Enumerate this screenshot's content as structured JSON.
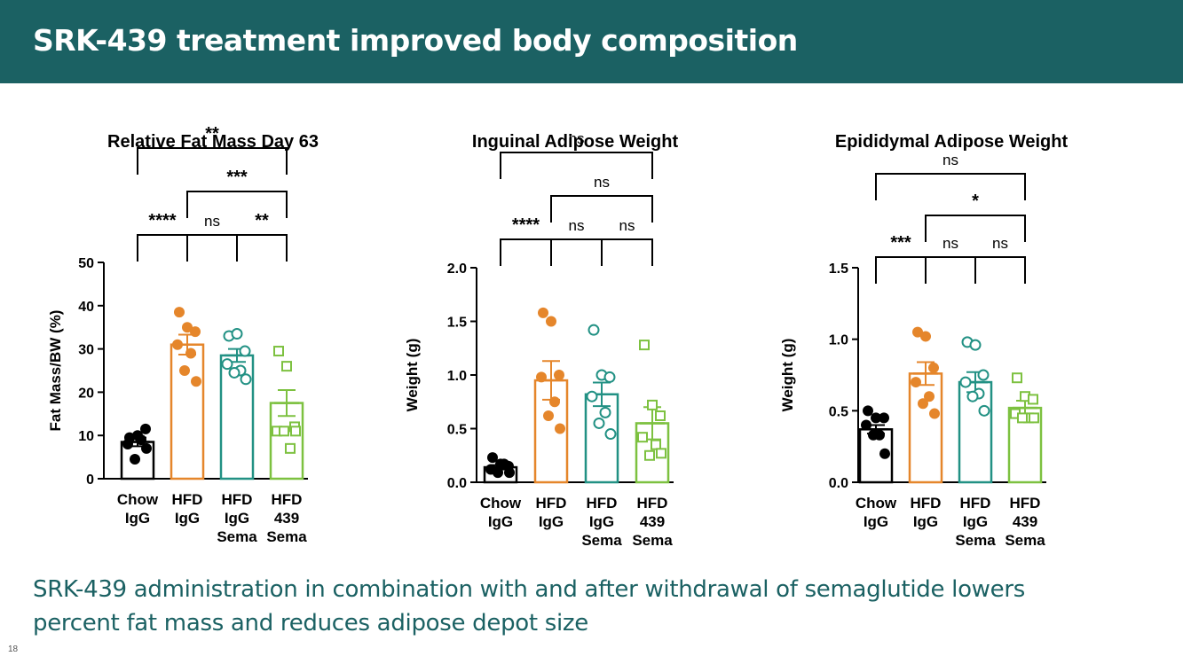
{
  "slide": {
    "title": "SRK-439 treatment improved body composition",
    "caption_line1": "SRK-439 administration in combination with and after withdrawal of semaglutide lowers",
    "caption_line2": "percent fat mass and reduces adipose depot size",
    "page_number": "18",
    "header_color": "#1b6163"
  },
  "colors": {
    "chow": "#000000",
    "hfd": "#e5862b",
    "hfd_sema": "#229184",
    "hfd_439_sema": "#7dc140"
  },
  "chart_data": [
    {
      "type": "bar",
      "title": "Relative Fat Mass Day 63",
      "ylabel": "Fat Mass/BW (%)",
      "xlabel": "",
      "ylim": [
        0,
        50
      ],
      "yticks": [
        0,
        10,
        20,
        30,
        40,
        50
      ],
      "ytick_labels": [
        "0",
        "10",
        "20",
        "30",
        "40",
        "50"
      ],
      "groups": [
        {
          "label_lines": [
            "Chow",
            "IgG"
          ],
          "mean": 8.5,
          "sem": 1.0,
          "color": "#000000",
          "marker": "filled-circle",
          "points": [
            9.5,
            10,
            11.5,
            8,
            9,
            4.5,
            7
          ]
        },
        {
          "label_lines": [
            "HFD",
            "IgG"
          ],
          "mean": 31,
          "sem": 2.3,
          "color": "#e5862b",
          "marker": "filled-circle",
          "points": [
            38.5,
            35,
            34,
            31,
            29,
            25,
            22.5
          ]
        },
        {
          "label_lines": [
            "HFD",
            "IgG",
            "Sema"
          ],
          "mean": 28.5,
          "sem": 1.5,
          "color": "#229184",
          "marker": "open-circle",
          "points": [
            33,
            33.5,
            29.5,
            26.5,
            25,
            24.5,
            23
          ]
        },
        {
          "label_lines": [
            "HFD",
            "439",
            "Sema"
          ],
          "mean": 17.5,
          "sem": 3.0,
          "color": "#7dc140",
          "marker": "open-square",
          "points": [
            29.5,
            26,
            12,
            11,
            7,
            11,
            11
          ]
        }
      ],
      "comparisons": [
        {
          "from": 0,
          "to": 1,
          "level": 0,
          "label": "****"
        },
        {
          "from": 1,
          "to": 2,
          "level": 0,
          "label": "ns"
        },
        {
          "from": 2,
          "to": 3,
          "level": 0,
          "label": "**"
        },
        {
          "from": 1,
          "to": 3,
          "level": 1,
          "label": "***"
        },
        {
          "from": 0,
          "to": 3,
          "level": 2,
          "label": "**"
        }
      ]
    },
    {
      "type": "bar",
      "title": "Inguinal Adipose Weight",
      "ylabel": "Weight (g)",
      "xlabel": "",
      "ylim": [
        0,
        2.0
      ],
      "yticks": [
        0,
        0.5,
        1.0,
        1.5,
        2.0
      ],
      "ytick_labels": [
        "0.0",
        "0.5",
        "1.0",
        "1.5",
        "2.0"
      ],
      "groups": [
        {
          "label_lines": [
            "Chow",
            "IgG"
          ],
          "mean": 0.14,
          "sem": 0.02,
          "color": "#000000",
          "marker": "filled-circle",
          "points": [
            0.23,
            0.17,
            0.15,
            0.12,
            0.17,
            0.09,
            0.09
          ]
        },
        {
          "label_lines": [
            "HFD",
            "IgG"
          ],
          "mean": 0.95,
          "sem": 0.18,
          "color": "#e5862b",
          "marker": "filled-circle",
          "points": [
            1.58,
            1.5,
            1.0,
            0.98,
            0.75,
            0.62,
            0.5
          ]
        },
        {
          "label_lines": [
            "HFD",
            "IgG",
            "Sema"
          ],
          "mean": 0.82,
          "sem": 0.11,
          "color": "#229184",
          "marker": "open-circle",
          "points": [
            1.42,
            1.0,
            0.98,
            0.8,
            0.65,
            0.55,
            0.45
          ]
        },
        {
          "label_lines": [
            "HFD",
            "439",
            "Sema"
          ],
          "mean": 0.55,
          "sem": 0.15,
          "color": "#7dc140",
          "marker": "open-square",
          "points": [
            1.28,
            0.72,
            0.62,
            0.42,
            0.35,
            0.25,
            0.27
          ]
        }
      ],
      "comparisons": [
        {
          "from": 0,
          "to": 1,
          "level": 0,
          "label": "****"
        },
        {
          "from": 1,
          "to": 2,
          "level": 0,
          "label": "ns"
        },
        {
          "from": 2,
          "to": 3,
          "level": 0,
          "label": "ns"
        },
        {
          "from": 1,
          "to": 3,
          "level": 1,
          "label": "ns"
        },
        {
          "from": 0,
          "to": 3,
          "level": 2,
          "label": "ns"
        }
      ]
    },
    {
      "type": "bar",
      "title": "Epididymal Adipose Weight",
      "ylabel": "Weight (g)",
      "xlabel": "",
      "ylim": [
        0,
        1.5
      ],
      "yticks": [
        0,
        0.5,
        1.0,
        1.5
      ],
      "ytick_labels": [
        "0.0",
        "0.5",
        "1.0",
        "1.5"
      ],
      "groups": [
        {
          "label_lines": [
            "Chow",
            "IgG"
          ],
          "mean": 0.37,
          "sem": 0.03,
          "color": "#000000",
          "marker": "filled-circle",
          "points": [
            0.5,
            0.45,
            0.45,
            0.4,
            0.33,
            0.33,
            0.2
          ]
        },
        {
          "label_lines": [
            "HFD",
            "IgG"
          ],
          "mean": 0.76,
          "sem": 0.08,
          "color": "#e5862b",
          "marker": "filled-circle",
          "points": [
            1.05,
            1.02,
            0.8,
            0.7,
            0.6,
            0.55,
            0.48
          ]
        },
        {
          "label_lines": [
            "HFD",
            "IgG",
            "Sema"
          ],
          "mean": 0.7,
          "sem": 0.07,
          "color": "#229184",
          "marker": "open-circle",
          "points": [
            0.98,
            0.96,
            0.75,
            0.7,
            0.62,
            0.6,
            0.5
          ]
        },
        {
          "label_lines": [
            "HFD",
            "439",
            "Sema"
          ],
          "mean": 0.52,
          "sem": 0.05,
          "color": "#7dc140",
          "marker": "open-square",
          "points": [
            0.73,
            0.6,
            0.58,
            0.48,
            0.45,
            0.45,
            0.45
          ]
        }
      ],
      "comparisons": [
        {
          "from": 0,
          "to": 1,
          "level": 0,
          "label": "***"
        },
        {
          "from": 1,
          "to": 2,
          "level": 0,
          "label": "ns"
        },
        {
          "from": 2,
          "to": 3,
          "level": 0,
          "label": "ns"
        },
        {
          "from": 1,
          "to": 3,
          "level": 1,
          "label": "*"
        },
        {
          "from": 0,
          "to": 3,
          "level": 2,
          "label": "ns"
        }
      ]
    }
  ]
}
